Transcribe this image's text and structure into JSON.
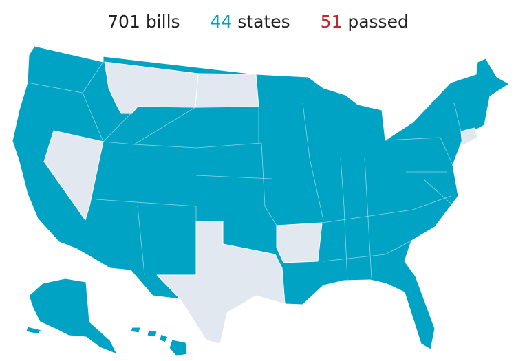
{
  "stats": {
    "bills": {
      "number": "701",
      "label": "bills",
      "color": "#222222"
    },
    "states": {
      "number": "44",
      "label": "states",
      "color": "#0a9fbf"
    },
    "passed": {
      "number": "51",
      "label": "passed",
      "color": "#c1272d"
    }
  },
  "map": {
    "active_color": "#00a3c4",
    "inactive_color": "#e2e8f0",
    "inactive_states": [
      "MT",
      "ND",
      "NV",
      "TX",
      "AR",
      "CT"
    ]
  }
}
